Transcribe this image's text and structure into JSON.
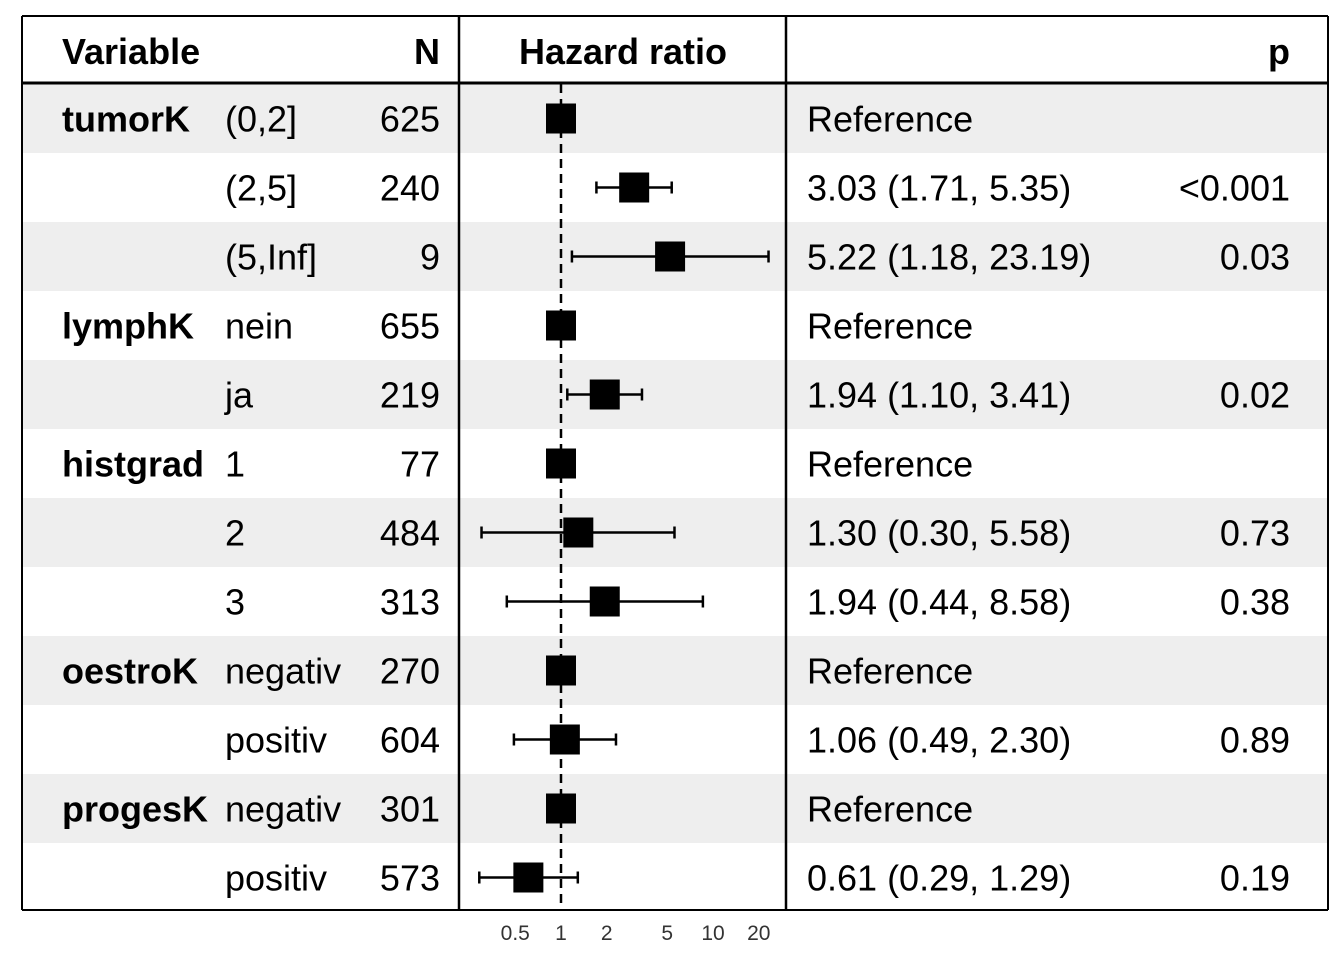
{
  "chart_data": {
    "type": "forest",
    "columns": {
      "variable": "Variable",
      "n": "N",
      "estimate": "Hazard ratio",
      "p": "p"
    },
    "x_scale": "log",
    "x_ticks": [
      0.5,
      1,
      2,
      5,
      10,
      20
    ],
    "x_tick_labels": [
      "0.5",
      "1",
      "2",
      "5",
      "10",
      "20"
    ],
    "xlim": [
      0.25,
      28
    ],
    "reference_line": 1,
    "rows": [
      {
        "variable": "tumorK",
        "level": "(0,2]",
        "n": "625",
        "hr": 1,
        "lo": null,
        "hi": null,
        "estimate_text": "Reference",
        "p": ""
      },
      {
        "variable": "",
        "level": "(2,5]",
        "n": "240",
        "hr": 3.03,
        "lo": 1.71,
        "hi": 5.35,
        "estimate_text": "3.03 (1.71, 5.35)",
        "p": "<0.001"
      },
      {
        "variable": "",
        "level": "(5,Inf]",
        "n": "9",
        "hr": 5.22,
        "lo": 1.18,
        "hi": 23.19,
        "estimate_text": "5.22 (1.18, 23.19)",
        "p": "0.03"
      },
      {
        "variable": "lymphK",
        "level": "nein",
        "n": "655",
        "hr": 1,
        "lo": null,
        "hi": null,
        "estimate_text": "Reference",
        "p": ""
      },
      {
        "variable": "",
        "level": "ja",
        "n": "219",
        "hr": 1.94,
        "lo": 1.1,
        "hi": 3.41,
        "estimate_text": "1.94 (1.10, 3.41)",
        "p": "0.02"
      },
      {
        "variable": "histgrad",
        "level": "1",
        "n": "77",
        "hr": 1,
        "lo": null,
        "hi": null,
        "estimate_text": "Reference",
        "p": ""
      },
      {
        "variable": "",
        "level": "2",
        "n": "484",
        "hr": 1.3,
        "lo": 0.3,
        "hi": 5.58,
        "estimate_text": "1.30 (0.30, 5.58)",
        "p": "0.73"
      },
      {
        "variable": "",
        "level": "3",
        "n": "313",
        "hr": 1.94,
        "lo": 0.44,
        "hi": 8.58,
        "estimate_text": "1.94 (0.44, 8.58)",
        "p": "0.38"
      },
      {
        "variable": "oestroK",
        "level": "negativ",
        "n": "270",
        "hr": 1,
        "lo": null,
        "hi": null,
        "estimate_text": "Reference",
        "p": ""
      },
      {
        "variable": "",
        "level": "positiv",
        "n": "604",
        "hr": 1.06,
        "lo": 0.49,
        "hi": 2.3,
        "estimate_text": "1.06 (0.49, 2.30)",
        "p": "0.89"
      },
      {
        "variable": "progesK",
        "level": "negativ",
        "n": "301",
        "hr": 1,
        "lo": null,
        "hi": null,
        "estimate_text": "Reference",
        "p": ""
      },
      {
        "variable": "",
        "level": "positiv",
        "n": "573",
        "hr": 0.61,
        "lo": 0.29,
        "hi": 1.29,
        "estimate_text": "0.61 (0.29, 1.29)",
        "p": "0.19"
      }
    ],
    "colors": {
      "stripe": "#eeeeee",
      "marker": "#000000",
      "line": "#000000"
    }
  }
}
